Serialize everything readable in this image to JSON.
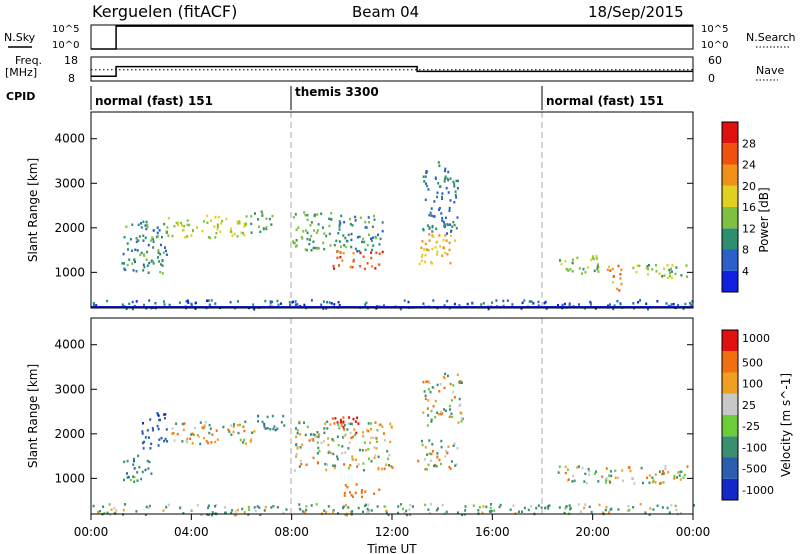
{
  "header": {
    "station": "Kerguelen (fitACF)",
    "beam": "Beam 04",
    "date": "18/Sep/2015"
  },
  "top_panels": {
    "nsky_label": "N.Sky",
    "nsky_ticks": [
      "10^5",
      "10^0"
    ],
    "nsearch_label": "N.Search",
    "nsearch_ticks": [
      "10^5",
      "10^0"
    ],
    "freq_label_1": "Freq.",
    "freq_label_2": "[MHz]",
    "freq_ticks": [
      "18",
      "8"
    ],
    "nave_label": "Nave",
    "nave_ticks": [
      "60",
      "0"
    ],
    "cpid_label": "CPID",
    "cpid_segments": [
      {
        "label": "normal (fast) 151",
        "start_hour": 0,
        "end_hour": 8
      },
      {
        "label": "themis 3300",
        "start_hour": 8,
        "end_hour": 18
      },
      {
        "label": "normal (fast) 151",
        "start_hour": 18,
        "end_hour": 24
      }
    ]
  },
  "time_axis": {
    "label": "Time UT",
    "ticks": [
      "00:00",
      "04:00",
      "08:00",
      "12:00",
      "16:00",
      "20:00",
      "00:00"
    ]
  },
  "chart_data": [
    {
      "type": "line",
      "title": "N.Sky / N.Search",
      "x_unit": "hour UT",
      "series": [
        {
          "name": "N.Sky",
          "x": [
            0,
            1,
            24
          ],
          "y": [
            1,
            60000,
            60000
          ]
        }
      ]
    },
    {
      "type": "line",
      "title": "Freq. / Nave",
      "series": [
        {
          "name": "Freq. [MHz]",
          "x": [
            0,
            1,
            1,
            13,
            13,
            24
          ],
          "y": [
            10,
            10,
            14,
            14,
            12,
            12
          ]
        },
        {
          "name": "Nave",
          "x": [
            0,
            24
          ],
          "y": [
            28,
            28
          ]
        }
      ]
    },
    {
      "type": "heatmap",
      "title": "Power",
      "xlabel": "Time UT",
      "ylabel": "Slant Range [km]",
      "xlim": [
        0,
        24
      ],
      "ylim": [
        200,
        4600
      ],
      "yticks": [
        1000,
        2000,
        3000,
        4000
      ],
      "colorbar_label": "Power [dB]",
      "colorbar_ticks": [
        "4",
        "8",
        "12",
        "16",
        "20",
        "24",
        "28"
      ],
      "colorbar_colors": [
        "#1020e0",
        "#2a60c8",
        "#2e8f6f",
        "#80c040",
        "#e0d020",
        "#f09018",
        "#f05010",
        "#e01010"
      ],
      "regions": [
        {
          "t": [
            1.2,
            3.0
          ],
          "r": [
            900,
            2200
          ],
          "db": 10
        },
        {
          "t": [
            3.0,
            6.2
          ],
          "r": [
            1800,
            2300
          ],
          "db": 16
        },
        {
          "t": [
            6.2,
            7.2
          ],
          "r": [
            1900,
            2400
          ],
          "db": 12
        },
        {
          "t": [
            8.0,
            9.6
          ],
          "r": [
            1500,
            2400
          ],
          "db": 12
        },
        {
          "t": [
            9.6,
            11.6
          ],
          "r": [
            1100,
            1500
          ],
          "db": 26
        },
        {
          "t": [
            9.6,
            11.6
          ],
          "r": [
            1500,
            2300
          ],
          "db": 10
        },
        {
          "t": [
            13.0,
            14.5
          ],
          "r": [
            1200,
            1900
          ],
          "db": 20
        },
        {
          "t": [
            13.2,
            14.6
          ],
          "r": [
            1900,
            3500
          ],
          "db": 8
        },
        {
          "t": [
            18.5,
            20.2
          ],
          "r": [
            1000,
            1400
          ],
          "db": 14
        },
        {
          "t": [
            20.5,
            21.2
          ],
          "r": [
            600,
            1200
          ],
          "db": 22
        },
        {
          "t": [
            21.5,
            23.8
          ],
          "r": [
            900,
            1200
          ],
          "db": 14
        },
        {
          "t": [
            0,
            24
          ],
          "r": [
            200,
            400
          ],
          "db": 6
        }
      ]
    },
    {
      "type": "heatmap",
      "title": "Velocity",
      "xlabel": "Time UT",
      "ylabel": "Slant Range [km]",
      "xlim": [
        0,
        24
      ],
      "ylim": [
        200,
        4600
      ],
      "yticks": [
        1000,
        2000,
        3000,
        4000
      ],
      "colorbar_label": "Velocity [m s^-1]",
      "colorbar_ticks": [
        "1000",
        "500",
        "100",
        "25",
        "-25",
        "-100",
        "-500",
        "-1000"
      ],
      "colorbar_colors": [
        "#1428c8",
        "#2a5fb0",
        "#3a8f70",
        "#6ccc3a",
        "#c8c8c8",
        "#f0a020",
        "#f07010",
        "#e01010"
      ],
      "regions": [
        {
          "t": [
            1.2,
            2.4
          ],
          "r": [
            900,
            1600
          ],
          "v": 200
        },
        {
          "t": [
            2.0,
            3.0
          ],
          "r": [
            1700,
            2500
          ],
          "v": 600
        },
        {
          "t": [
            3.2,
            6.5
          ],
          "r": [
            1800,
            2300
          ],
          "v": 0
        },
        {
          "t": [
            6.5,
            7.8
          ],
          "r": [
            2100,
            2500
          ],
          "v": 300
        },
        {
          "t": [
            8.0,
            12.0
          ],
          "r": [
            1200,
            2300
          ],
          "v": 0
        },
        {
          "t": [
            9.6,
            10.8
          ],
          "r": [
            2000,
            2400
          ],
          "v": -600
        },
        {
          "t": [
            10.0,
            11.5
          ],
          "r": [
            600,
            900
          ],
          "v": -300
        },
        {
          "t": [
            13.0,
            14.6
          ],
          "r": [
            1200,
            1900
          ],
          "v": 0
        },
        {
          "t": [
            13.2,
            14.8
          ],
          "r": [
            2200,
            3400
          ],
          "v": 0
        },
        {
          "t": [
            18.5,
            23.8
          ],
          "r": [
            900,
            1300
          ],
          "v": 0
        },
        {
          "t": [
            0,
            24
          ],
          "r": [
            200,
            450
          ],
          "v": 80
        }
      ]
    }
  ]
}
